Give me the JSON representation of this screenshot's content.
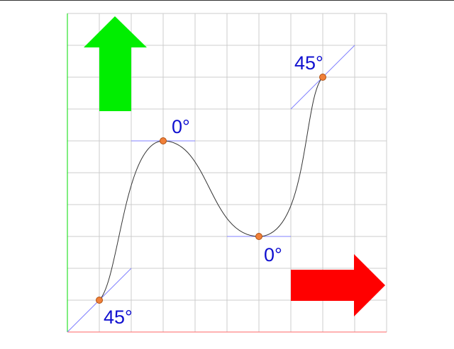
{
  "colors": {
    "grid": "#cccccc",
    "y_axis": "#00dd00",
    "x_axis": "#ff6666",
    "up_arrow": "#00ee00",
    "right_arrow": "#ff0000",
    "tangent": "#8080ff",
    "curve": "#333333",
    "knot_fill": "#f0803a",
    "label": "#1010d0",
    "top_border": "#333333"
  },
  "grid": {
    "columns": 10,
    "rows": 10
  },
  "knots": [
    {
      "id": "p1",
      "col": 1,
      "row": 1,
      "angle_label": "45°"
    },
    {
      "id": "p2",
      "col": 3,
      "row": 6,
      "angle_label": "0°"
    },
    {
      "id": "p3",
      "col": 6,
      "row": 3,
      "angle_label": "0°"
    },
    {
      "id": "p4",
      "col": 8,
      "row": 8,
      "angle_label": "45°"
    }
  ],
  "icons": {
    "up": "up-arrow-icon",
    "right": "right-arrow-icon"
  }
}
